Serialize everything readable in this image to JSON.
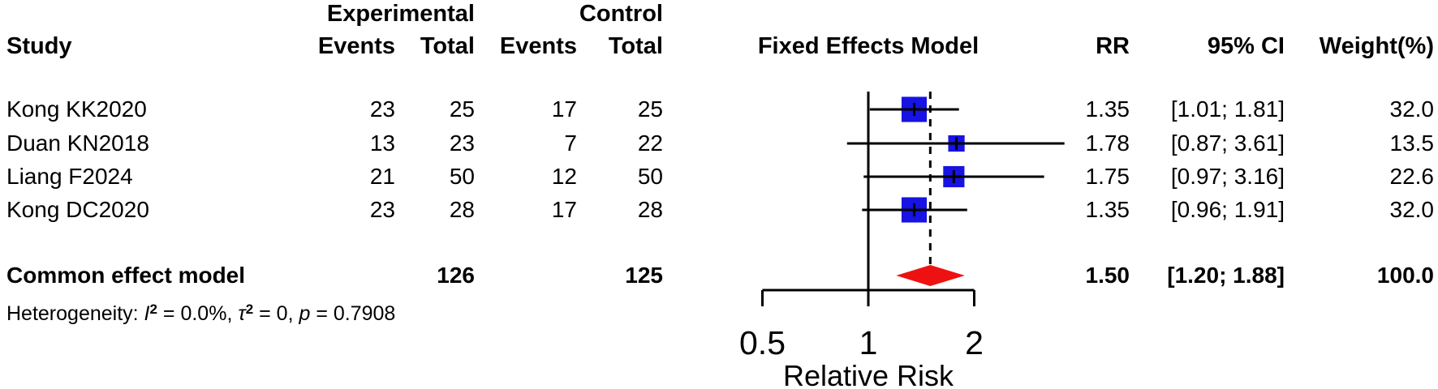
{
  "header": {
    "study": "Study",
    "experimental": "Experimental",
    "control": "Control",
    "exp_events": "Events",
    "exp_total": "Total",
    "ctrl_events": "Events",
    "ctrl_total": "Total",
    "plot_title": "Fixed Effects Model",
    "rr": "RR",
    "ci": "95% CI",
    "weight": "Weight(%)"
  },
  "rows": [
    {
      "study": "Kong KK2020",
      "exp_events": "23",
      "exp_total": "25",
      "ctrl_events": "17",
      "ctrl_total": "25",
      "rr": "1.35",
      "ci": "[1.01; 1.81]",
      "weight": "32.0"
    },
    {
      "study": "Duan KN2018",
      "exp_events": "13",
      "exp_total": "23",
      "ctrl_events": "7",
      "ctrl_total": "22",
      "rr": "1.78",
      "ci": "[0.87; 3.61]",
      "weight": "13.5"
    },
    {
      "study": "Liang F2024",
      "exp_events": "21",
      "exp_total": "50",
      "ctrl_events": "12",
      "ctrl_total": "50",
      "rr": "1.75",
      "ci": "[0.97; 3.16]",
      "weight": "22.6"
    },
    {
      "study": "Kong DC2020",
      "exp_events": "23",
      "exp_total": "28",
      "ctrl_events": "17",
      "ctrl_total": "28",
      "rr": "1.35",
      "ci": "[0.96; 1.91]",
      "weight": "32.0"
    }
  ],
  "summary": {
    "label": "Common effect model",
    "exp_total": "126",
    "ctrl_total": "125",
    "rr": "1.50",
    "ci": "[1.20; 1.88]",
    "weight": "100.0"
  },
  "heterogeneity": {
    "full_text": "Heterogeneity: I² = 0.0%, τ² = 0, p = 0.7908",
    "prefix": "Heterogeneity: ",
    "i_symbol": "I",
    "i_sup": "2",
    "i_value": " = 0.0%, ",
    "tau_symbol": "τ",
    "tau_sup": "2",
    "tau_value": " = 0, ",
    "p_symbol": "p",
    "p_value": " = 0.7908"
  },
  "chart_data": {
    "type": "forest",
    "title": "Fixed Effects Model",
    "xlabel": "Relative Risk",
    "x_scale": "log",
    "x_ticks": [
      0.5,
      1,
      2
    ],
    "xlim": [
      0.45,
      3.7
    ],
    "ref_line": 1,
    "dashed_line_at": 1.5,
    "studies": [
      {
        "name": "Kong KK2020",
        "rr": 1.35,
        "ci_low": 1.01,
        "ci_high": 1.81,
        "weight": 32.0
      },
      {
        "name": "Duan KN2018",
        "rr": 1.78,
        "ci_low": 0.87,
        "ci_high": 3.61,
        "weight": 13.5
      },
      {
        "name": "Liang F2024",
        "rr": 1.75,
        "ci_low": 0.97,
        "ci_high": 3.16,
        "weight": 22.6
      },
      {
        "name": "Kong DC2020",
        "rr": 1.35,
        "ci_low": 0.96,
        "ci_high": 1.91,
        "weight": 32.0
      }
    ],
    "pooled": {
      "name": "Common effect model",
      "rr": 1.5,
      "ci_low": 1.2,
      "ci_high": 1.88,
      "weight": 100.0
    },
    "colors": {
      "square": "#1713E2",
      "diamond": "#EE1111",
      "line": "#000000"
    }
  }
}
